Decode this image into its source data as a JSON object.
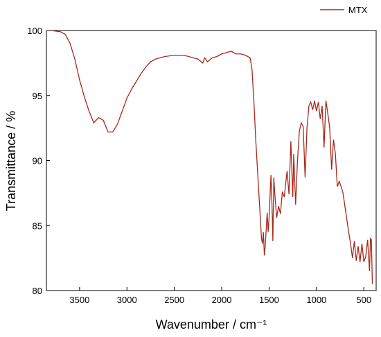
{
  "chart_data": {
    "type": "line",
    "xlabel": "Wavenumber / cm⁻¹",
    "ylabel": "Transmittance / %",
    "xlim": [
      3850,
      370
    ],
    "ylim": [
      80,
      100
    ],
    "xticks": [
      3500,
      3000,
      2500,
      2000,
      1500,
      1000,
      500
    ],
    "yticks": [
      80,
      85,
      90,
      95,
      100
    ],
    "legend": "top-right",
    "x": [
      3800,
      3700,
      3650,
      3600,
      3550,
      3500,
      3450,
      3400,
      3350,
      3300,
      3250,
      3200,
      3150,
      3100,
      3050,
      3000,
      2950,
      2900,
      2850,
      2800,
      2750,
      2700,
      2600,
      2500,
      2400,
      2300,
      2250,
      2200,
      2180,
      2150,
      2100,
      2050,
      2000,
      1950,
      1900,
      1850,
      1800,
      1750,
      1700,
      1680,
      1660,
      1640,
      1620,
      1600,
      1580,
      1570,
      1560,
      1550,
      1540,
      1520,
      1510,
      1500,
      1480,
      1470,
      1460,
      1450,
      1440,
      1420,
      1400,
      1380,
      1360,
      1340,
      1310,
      1290,
      1270,
      1250,
      1240,
      1220,
      1200,
      1180,
      1160,
      1140,
      1120,
      1100,
      1080,
      1060,
      1040,
      1020,
      1000,
      980,
      960,
      940,
      920,
      900,
      880,
      860,
      840,
      820,
      800,
      780,
      760,
      740,
      720,
      700,
      680,
      660,
      640,
      620,
      600,
      580,
      560,
      540,
      520,
      500,
      480,
      460,
      440,
      430,
      420,
      410
    ],
    "series": [
      {
        "name": "MTX",
        "color": "#a8281c",
        "values": [
          100.0,
          99.9,
          99.7,
          99.0,
          97.8,
          96.2,
          94.9,
          93.8,
          92.9,
          93.3,
          93.1,
          92.2,
          92.2,
          92.8,
          93.8,
          94.8,
          95.5,
          96.1,
          96.7,
          97.2,
          97.6,
          97.8,
          98.0,
          98.1,
          98.1,
          97.9,
          97.8,
          97.5,
          97.9,
          97.6,
          97.9,
          98.0,
          98.2,
          98.3,
          98.4,
          98.2,
          98.2,
          98.1,
          97.9,
          97.0,
          94.5,
          91.5,
          89.0,
          86.5,
          84.0,
          83.6,
          84.5,
          82.7,
          83.5,
          86.0,
          84.5,
          85.6,
          88.9,
          86.8,
          83.8,
          88.7,
          87.5,
          85.6,
          86.5,
          85.9,
          87.6,
          87.2,
          89.2,
          87.4,
          91.5,
          87.2,
          90.5,
          86.6,
          90.0,
          92.3,
          92.9,
          92.6,
          88.7,
          92.5,
          94.2,
          94.5,
          93.9,
          94.6,
          93.8,
          94.5,
          93.2,
          94.2,
          91.0,
          94.6,
          93.6,
          92.5,
          89.3,
          91.6,
          90.5,
          88.0,
          88.4,
          88.0,
          87.5,
          86.5,
          85.5,
          84.5,
          83.6,
          82.5,
          83.8,
          82.3,
          83.4,
          82.2,
          83.6,
          82.2,
          82.6,
          83.9,
          81.5,
          84.0,
          83.9,
          80.5
        ]
      }
    ]
  }
}
